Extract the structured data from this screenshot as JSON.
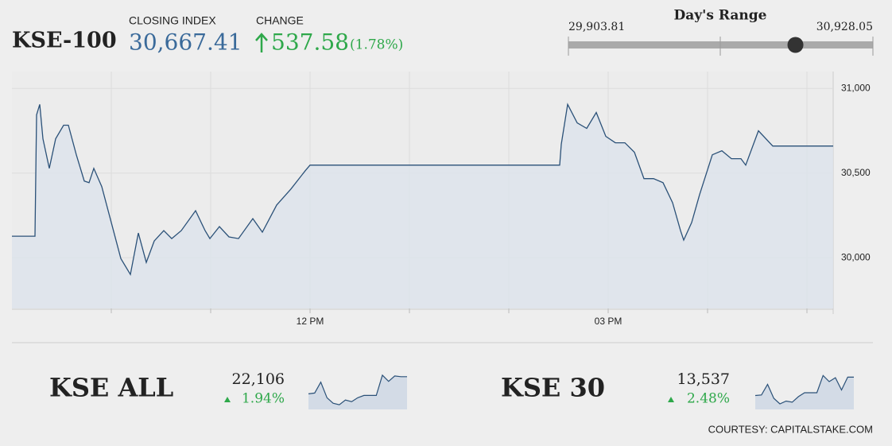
{
  "header": {
    "index_name": "KSE-100",
    "closing_label": "CLOSING INDEX",
    "closing_value": {
      "value": 30667.41,
      "label": "30,667.41"
    },
    "change_label": "CHANGE",
    "change_value": 537.58,
    "change_percent": {
      "value": 1.78,
      "label": "(1.78%)"
    }
  },
  "days_range": {
    "title": "Day's Range",
    "low": {
      "value": 29903.81,
      "label": "29,903.81"
    },
    "high": {
      "value": 30928.05,
      "label": "30,928.05"
    }
  },
  "chart_data": {
    "type": "line",
    "color": "#2b5178",
    "fill": "#dde4ec",
    "grid": true,
    "x": [
      9.0,
      9.232,
      9.248,
      9.28,
      9.312,
      9.376,
      9.44,
      9.52,
      9.568,
      9.648,
      9.728,
      9.776,
      9.824,
      9.904,
      10.0,
      10.096,
      10.192,
      10.272,
      10.352,
      10.432,
      10.528,
      10.608,
      10.704,
      10.848,
      10.944,
      10.992,
      11.088,
      11.184,
      11.28,
      11.424,
      11.52,
      11.664,
      11.808,
      11.952,
      12.0,
      14.512,
      14.528,
      14.592,
      14.688,
      14.784,
      14.88,
      14.976,
      15.072,
      15.168,
      15.264,
      15.36,
      15.456,
      15.552,
      15.648,
      15.728,
      15.76,
      15.84,
      15.92,
      16.048,
      16.144,
      16.24,
      16.336,
      16.384,
      16.512,
      16.656,
      17.264
    ],
    "values": [
      30127,
      30127,
      30844,
      30906,
      30703,
      30528,
      30703,
      30783,
      30783,
      30608,
      30453,
      30443,
      30528,
      30420,
      30208,
      29995,
      29901,
      30146,
      29972,
      30099,
      30160,
      30113,
      30160,
      30278,
      30160,
      30113,
      30184,
      30123,
      30113,
      30231,
      30151,
      30311,
      30406,
      30514,
      30547,
      30547,
      30670,
      30906,
      30797,
      30764,
      30858,
      30717,
      30679,
      30679,
      30623,
      30467,
      30467,
      30443,
      30325,
      30160,
      30104,
      30208,
      30373,
      30608,
      30632,
      30585,
      30585,
      30547,
      30750,
      30660,
      30660
    ],
    "xlim": [
      9.0,
      17.264
    ],
    "xticks": [
      {
        "value": 10,
        "label": null
      },
      {
        "value": 11,
        "label": null
      },
      {
        "value": 12,
        "label": "12 PM"
      },
      {
        "value": 13,
        "label": null
      },
      {
        "value": 14,
        "label": null
      },
      {
        "value": 15,
        "label": "03 PM"
      },
      {
        "value": 16,
        "label": null
      },
      {
        "value": 17,
        "label": null
      }
    ],
    "ylim": [
      29700,
      31100
    ],
    "yticks": [
      {
        "value": 30000,
        "label": "30,000"
      },
      {
        "value": 30500,
        "label": "30,500"
      },
      {
        "value": 31000,
        "label": "31,000"
      }
    ]
  },
  "indices": [
    {
      "name": "KSE ALL",
      "value": {
        "value": 22106,
        "label": "22,106"
      },
      "change": {
        "value": 1.94,
        "label": "1.94%"
      },
      "ylim": [
        21700,
        22200
      ],
      "values": [
        21900,
        21910,
        22050,
        21850,
        21780,
        21760,
        21820,
        21800,
        21850,
        21880,
        21880,
        21880,
        22140,
        22060,
        22130,
        22120,
        22120
      ]
    },
    {
      "name": "KSE 30",
      "value": {
        "value": 13537,
        "label": "13,537"
      },
      "change": {
        "value": 2.48,
        "label": "2.48%"
      },
      "ylim": [
        12950,
        13650
      ],
      "values": [
        13200,
        13210,
        13400,
        13150,
        13050,
        13100,
        13080,
        13180,
        13250,
        13250,
        13250,
        13560,
        13450,
        13520,
        13300,
        13530,
        13530
      ]
    }
  ],
  "footer": "COURTESY: CAPITALSTAKE.COM"
}
